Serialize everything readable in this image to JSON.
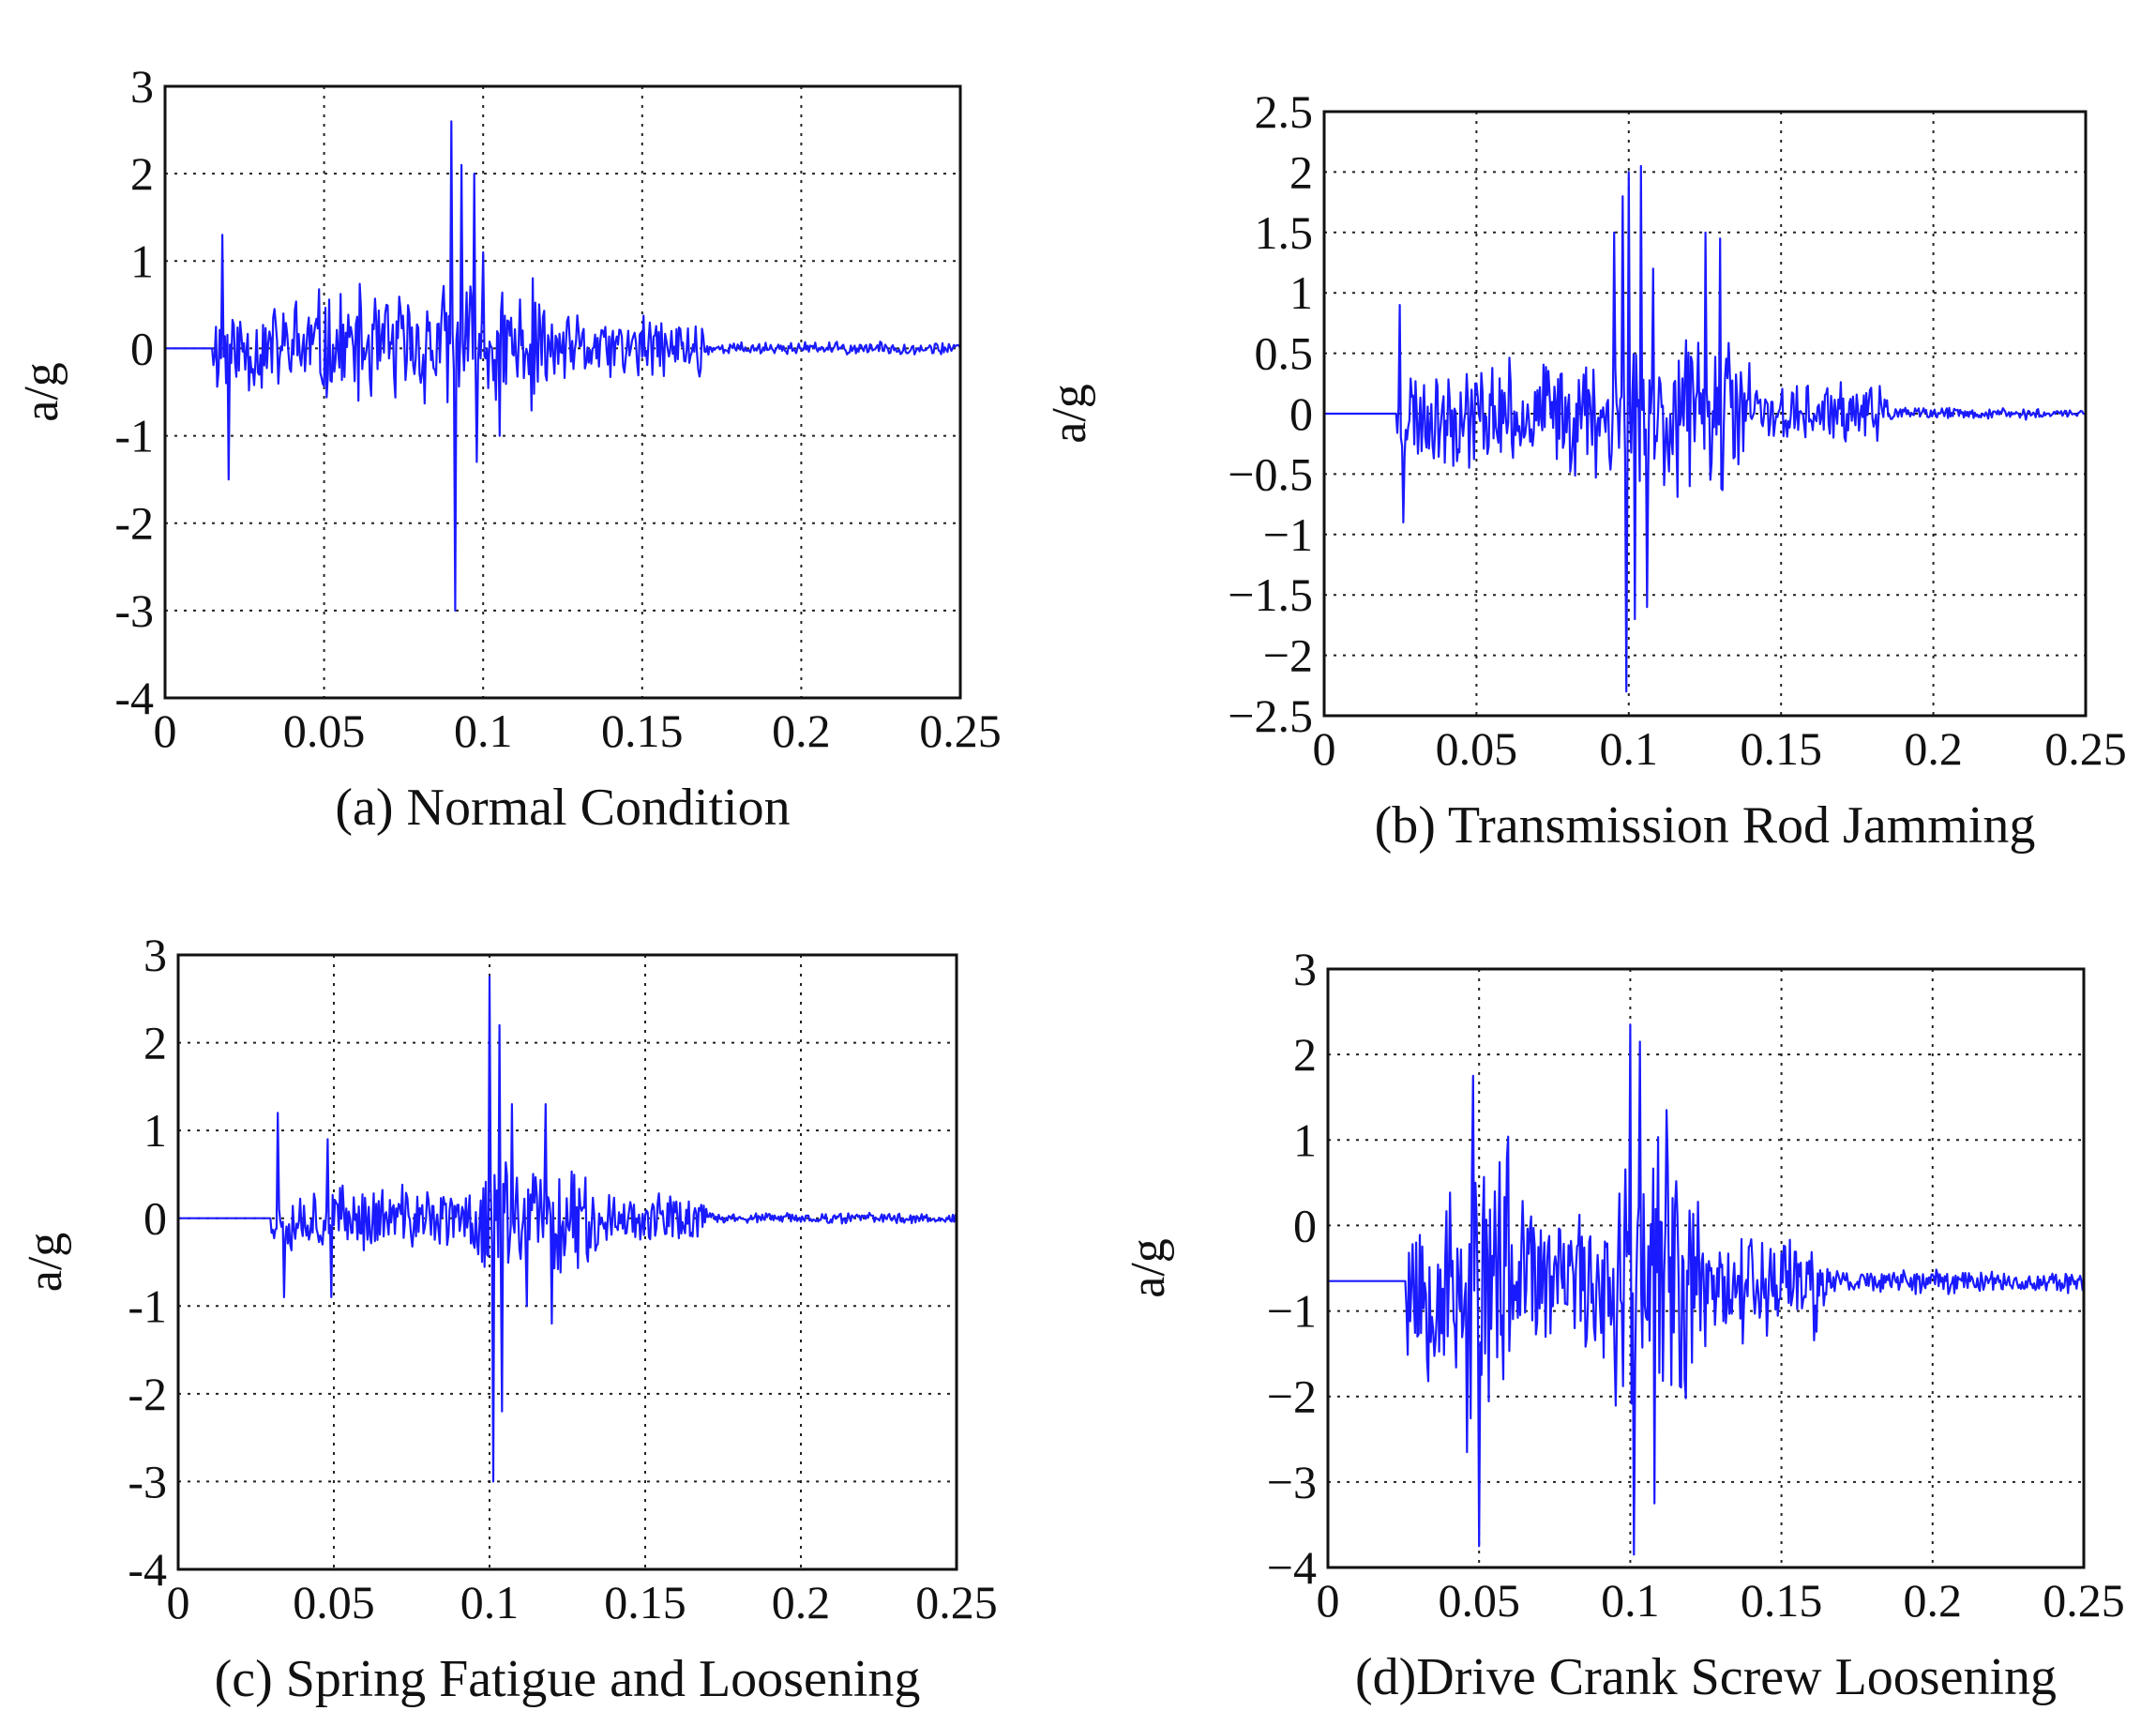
{
  "chart_data": [
    {
      "type": "line",
      "id": "a",
      "caption": "(a) Normal Condition",
      "ylabel": "a/g",
      "xlim": [
        0,
        0.25
      ],
      "ylim": [
        -4,
        3
      ],
      "xticks": [
        "0",
        "0.05",
        "0.1",
        "0.15",
        "0.2",
        "0.25"
      ],
      "xtick_values": [
        0,
        0.05,
        0.1,
        0.15,
        0.2,
        0.25
      ],
      "yticks": [
        "-4",
        "-3",
        "-2",
        "-1",
        "0",
        "1",
        "2",
        "3"
      ],
      "ytick_values": [
        -4,
        -3,
        -2,
        -1,
        0,
        1,
        2,
        3
      ],
      "grid": true,
      "series_color": "#1a1aff",
      "signal": {
        "baseline": 0,
        "onset": 0.015,
        "sample_step": 0.0004,
        "seed": 11,
        "noise": [
          [
            0.015,
            0.04,
            0.45
          ],
          [
            0.04,
            0.085,
            0.55
          ],
          [
            0.085,
            0.12,
            0.6
          ],
          [
            0.12,
            0.17,
            0.3
          ],
          [
            0.17,
            0.25,
            0.06
          ]
        ],
        "spikes": [
          [
            0.018,
            1.3
          ],
          [
            0.02,
            -1.5
          ],
          [
            0.09,
            2.6
          ],
          [
            0.091,
            -3.0
          ],
          [
            0.093,
            2.1
          ],
          [
            0.097,
            2.0
          ],
          [
            0.098,
            -1.3
          ],
          [
            0.1,
            1.1
          ],
          [
            0.105,
            -1.0
          ]
        ]
      }
    },
    {
      "type": "line",
      "id": "b",
      "caption": "(b) Transmission Rod Jamming",
      "ylabel": "a/g",
      "xlim": [
        0,
        0.25
      ],
      "ylim": [
        -2.5,
        2.5
      ],
      "xticks": [
        "0",
        "0.05",
        "0.1",
        "0.15",
        "0.2",
        "0.25"
      ],
      "xtick_values": [
        0,
        0.05,
        0.1,
        0.15,
        0.2,
        0.25
      ],
      "yticks": [
        "−2.5",
        "−2",
        "−1.5",
        "−1",
        "−0.5",
        "0",
        "0.5",
        "1",
        "1.5",
        "2",
        "2.5"
      ],
      "ytick_values": [
        -2.5,
        -2,
        -1.5,
        -1,
        -0.5,
        0,
        0.5,
        1,
        1.5,
        2,
        2.5
      ],
      "grid": true,
      "series_color": "#1a1aff",
      "signal": {
        "baseline": 0,
        "onset": 0.024,
        "sample_step": 0.0004,
        "seed": 23,
        "noise": [
          [
            0.024,
            0.075,
            0.35
          ],
          [
            0.075,
            0.095,
            0.4
          ],
          [
            0.095,
            0.14,
            0.55
          ],
          [
            0.14,
            0.185,
            0.2
          ],
          [
            0.185,
            0.25,
            0.04
          ]
        ],
        "spikes": [
          [
            0.025,
            0.9
          ],
          [
            0.026,
            -0.9
          ],
          [
            0.095,
            1.5
          ],
          [
            0.098,
            1.8
          ],
          [
            0.099,
            -2.3
          ],
          [
            0.1,
            2.0
          ],
          [
            0.102,
            -1.7
          ],
          [
            0.104,
            2.05
          ],
          [
            0.106,
            -1.6
          ],
          [
            0.108,
            1.2
          ],
          [
            0.125,
            1.5
          ],
          [
            0.13,
            1.45
          ],
          [
            0.12,
            -0.6
          ]
        ]
      }
    },
    {
      "type": "line",
      "id": "c",
      "caption": "(c) Spring Fatigue and Loosening",
      "ylabel": "a/g",
      "xlim": [
        0,
        0.25
      ],
      "ylim": [
        -4,
        3
      ],
      "xticks": [
        "0",
        "0.05",
        "0.1",
        "0.15",
        "0.2",
        "0.25"
      ],
      "xtick_values": [
        0,
        0.05,
        0.1,
        0.15,
        0.2,
        0.25
      ],
      "yticks": [
        "-4",
        "-3",
        "-2",
        "-1",
        "0",
        "1",
        "2",
        "3"
      ],
      "ytick_values": [
        -4,
        -3,
        -2,
        -1,
        0,
        1,
        2,
        3
      ],
      "grid": true,
      "series_color": "#1a1aff",
      "signal": {
        "baseline": 0,
        "onset": 0.03,
        "sample_step": 0.0004,
        "seed": 37,
        "noise": [
          [
            0.03,
            0.07,
            0.3
          ],
          [
            0.07,
            0.095,
            0.3
          ],
          [
            0.095,
            0.135,
            0.55
          ],
          [
            0.135,
            0.17,
            0.22
          ],
          [
            0.17,
            0.25,
            0.05
          ]
        ],
        "spikes": [
          [
            0.032,
            1.2
          ],
          [
            0.034,
            -0.9
          ],
          [
            0.048,
            0.9
          ],
          [
            0.049,
            -0.9
          ],
          [
            0.1,
            2.75
          ],
          [
            0.101,
            -3.0
          ],
          [
            0.103,
            2.2
          ],
          [
            0.104,
            -2.2
          ],
          [
            0.107,
            1.3
          ],
          [
            0.112,
            -1.0
          ],
          [
            0.118,
            1.3
          ],
          [
            0.12,
            -1.2
          ]
        ]
      }
    },
    {
      "type": "line",
      "id": "d",
      "caption": "(d)Drive Crank Screw Loosening",
      "ylabel": "a/g",
      "xlim": [
        0,
        0.25
      ],
      "ylim": [
        -4,
        3
      ],
      "xticks": [
        "0",
        "0.05",
        "0.1",
        "0.15",
        "0.2",
        "0.25"
      ],
      "xtick_values": [
        0,
        0.05,
        0.1,
        0.15,
        0.2,
        0.25
      ],
      "yticks": [
        "−4",
        "−3",
        "−2",
        "−1",
        "0",
        "1",
        "2",
        "3"
      ],
      "ytick_values": [
        -4,
        -3,
        -2,
        -1,
        0,
        1,
        2,
        3
      ],
      "grid": true,
      "series_color": "#1a1aff",
      "signal": {
        "baseline": -0.65,
        "onset": 0.026,
        "sample_step": 0.0004,
        "seed": 53,
        "noise": [
          [
            0.026,
            0.045,
            1.0
          ],
          [
            0.045,
            0.06,
            1.4
          ],
          [
            0.06,
            0.095,
            0.7
          ],
          [
            0.095,
            0.125,
            1.4
          ],
          [
            0.125,
            0.165,
            0.55
          ],
          [
            0.165,
            0.25,
            0.12
          ]
        ],
        "spikes": [
          [
            0.048,
            2.4
          ],
          [
            0.05,
            -3.1
          ],
          [
            0.046,
            -2.0
          ],
          [
            0.1,
            3.0
          ],
          [
            0.101,
            -3.2
          ],
          [
            0.103,
            2.8
          ],
          [
            0.108,
            -2.6
          ],
          [
            0.112,
            2.0
          ]
        ]
      }
    }
  ]
}
